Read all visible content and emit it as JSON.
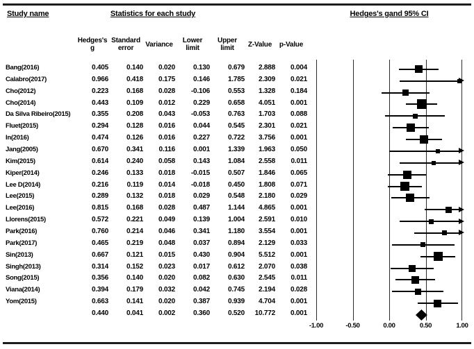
{
  "page": {
    "study_name_header": "Study name",
    "stats_header": "Statistics for each study",
    "plot_header": "Hedges's gand 95% CI"
  },
  "chart_data": {
    "type": "forest",
    "title": "Hedges's gand 95% CI",
    "stats_section_title": "Statistics for each study",
    "xlim": [
      -1,
      1
    ],
    "x_ticks": [
      "-1.00",
      "-0.50",
      "0.00",
      "0.50",
      "1.00"
    ],
    "grid": "vertical-lines-at-ticks",
    "columns": [
      "Hedges's\ng",
      "Standard\nerror",
      "Variance",
      "Lower\nlimit",
      "Upper\nlimit",
      "Z-Value",
      "p-Value"
    ],
    "studies": [
      {
        "name": "Bang(2016)",
        "g": "0.405",
        "se": "0.140",
        "variance": "0.020",
        "lower": "0.130",
        "upper": "0.679",
        "z": "2.888",
        "p": "0.004"
      },
      {
        "name": "Calabro(2017)",
        "g": "0.966",
        "se": "0.418",
        "variance": "0.175",
        "lower": "0.146",
        "upper": "1.785",
        "z": "2.309",
        "p": "0.021"
      },
      {
        "name": "Cho(2012)",
        "g": "0.223",
        "se": "0.168",
        "variance": "0.028",
        "lower": "-0.106",
        "upper": "0.553",
        "z": "1.328",
        "p": "0.184"
      },
      {
        "name": "Cho(2014)",
        "g": "0.443",
        "se": "0.109",
        "variance": "0.012",
        "lower": "0.229",
        "upper": "0.658",
        "z": "4.051",
        "p": "0.001"
      },
      {
        "name": "Da Silva Ribeiro(2015)",
        "g": "0.355",
        "se": "0.208",
        "variance": "0.043",
        "lower": "-0.053",
        "upper": "0.763",
        "z": "1.703",
        "p": "0.088"
      },
      {
        "name": "Fluet(2015)",
        "g": "0.294",
        "se": "0.128",
        "variance": "0.016",
        "lower": "0.044",
        "upper": "0.545",
        "z": "2.301",
        "p": "0.021"
      },
      {
        "name": "In(2016)",
        "g": "0.474",
        "se": "0.126",
        "variance": "0.016",
        "lower": "0.227",
        "upper": "0.722",
        "z": "3.756",
        "p": "0.001"
      },
      {
        "name": "Jang(2005)",
        "g": "0.670",
        "se": "0.341",
        "variance": "0.116",
        "lower": "0.001",
        "upper": "1.339",
        "z": "1.963",
        "p": "0.050"
      },
      {
        "name": "Kim(2015)",
        "g": "0.614",
        "se": "0.240",
        "variance": "0.058",
        "lower": "0.143",
        "upper": "1.084",
        "z": "2.558",
        "p": "0.011"
      },
      {
        "name": "Kiper(2014)",
        "g": "0.246",
        "se": "0.133",
        "variance": "0.018",
        "lower": "-0.015",
        "upper": "0.507",
        "z": "1.846",
        "p": "0.065"
      },
      {
        "name": "Lee D(2014)",
        "g": "0.216",
        "se": "0.119",
        "variance": "0.014",
        "lower": "-0.018",
        "upper": "0.450",
        "z": "1.808",
        "p": "0.071"
      },
      {
        "name": "Lee(2015)",
        "g": "0.289",
        "se": "0.132",
        "variance": "0.018",
        "lower": "0.029",
        "upper": "0.548",
        "z": "2.180",
        "p": "0.029"
      },
      {
        "name": "Lee(2016)",
        "g": "0.815",
        "se": "0.168",
        "variance": "0.028",
        "lower": "0.487",
        "upper": "1.144",
        "z": "4.865",
        "p": "0.001"
      },
      {
        "name": "Llorens(2015)",
        "g": "0.572",
        "se": "0.221",
        "variance": "0.049",
        "lower": "0.139",
        "upper": "1.004",
        "z": "2.591",
        "p": "0.010"
      },
      {
        "name": "Park(2016)",
        "g": "0.760",
        "se": "0.214",
        "variance": "0.046",
        "lower": "0.341",
        "upper": "1.180",
        "z": "3.554",
        "p": "0.001"
      },
      {
        "name": "Park(2017)",
        "g": "0.465",
        "se": "0.219",
        "variance": "0.048",
        "lower": "0.037",
        "upper": "0.894",
        "z": "2.129",
        "p": "0.033"
      },
      {
        "name": "Sin(2013)",
        "g": "0.667",
        "se": "0.121",
        "variance": "0.015",
        "lower": "0.430",
        "upper": "0.904",
        "z": "5.512",
        "p": "0.001"
      },
      {
        "name": "Singh(2013)",
        "g": "0.314",
        "se": "0.152",
        "variance": "0.023",
        "lower": "0.017",
        "upper": "0.612",
        "z": "2.070",
        "p": "0.038"
      },
      {
        "name": "Song(2015)",
        "g": "0.356",
        "se": "0.140",
        "variance": "0.020",
        "lower": "0.082",
        "upper": "0.630",
        "z": "2.545",
        "p": "0.011"
      },
      {
        "name": "Viana(2014)",
        "g": "0.394",
        "se": "0.179",
        "variance": "0.032",
        "lower": "0.042",
        "upper": "0.745",
        "z": "2.194",
        "p": "0.028"
      },
      {
        "name": "Yom(2015)",
        "g": "0.663",
        "se": "0.141",
        "variance": "0.020",
        "lower": "0.387",
        "upper": "0.939",
        "z": "4.704",
        "p": "0.001"
      }
    ],
    "overall": {
      "name": "",
      "g": "0.440",
      "se": "0.041",
      "variance": "0.002",
      "lower": "0.360",
      "upper": "0.520",
      "z": "10.772",
      "p": "0.001"
    }
  }
}
